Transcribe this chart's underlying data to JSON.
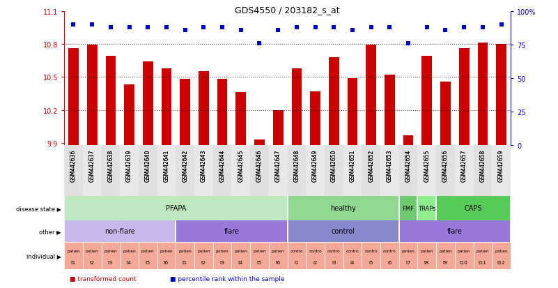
{
  "title": "GDS4550 / 203182_s_at",
  "samples": [
    "GSM442636",
    "GSM442637",
    "GSM442638",
    "GSM442639",
    "GSM442640",
    "GSM442641",
    "GSM442642",
    "GSM442643",
    "GSM442644",
    "GSM442645",
    "GSM442646",
    "GSM442647",
    "GSM442648",
    "GSM442649",
    "GSM442650",
    "GSM442651",
    "GSM442652",
    "GSM442653",
    "GSM442654",
    "GSM442655",
    "GSM442656",
    "GSM442657",
    "GSM442658",
    "GSM442659"
  ],
  "bar_values": [
    10.76,
    10.79,
    10.69,
    10.43,
    10.64,
    10.58,
    10.48,
    10.55,
    10.48,
    10.36,
    9.93,
    10.2,
    10.58,
    10.37,
    10.68,
    10.49,
    10.79,
    10.52,
    9.97,
    10.69,
    10.46,
    10.76,
    10.81,
    10.8
  ],
  "perc_pct": [
    90,
    90,
    88,
    88,
    88,
    88,
    86,
    88,
    88,
    86,
    76,
    86,
    88,
    88,
    88,
    86,
    88,
    88,
    76,
    88,
    86,
    88,
    88,
    90
  ],
  "ylim": [
    9.88,
    11.1
  ],
  "yticks": [
    9.9,
    10.2,
    10.5,
    10.8,
    11.1
  ],
  "ytick_labels": [
    "9.9",
    "10.2",
    "10.5",
    "10.8",
    "11.1"
  ],
  "y2pct": [
    0,
    25,
    50,
    75,
    100
  ],
  "y2tick_labels": [
    "0",
    "25",
    "50",
    "75",
    "100%"
  ],
  "bar_color": "#cc0000",
  "dot_color": "#0000cc",
  "hline_values": [
    10.2,
    10.5,
    10.8
  ],
  "disease_info": [
    [
      0,
      11,
      "PFAPA",
      "#c0e8c0"
    ],
    [
      12,
      17,
      "healthy",
      "#90d890"
    ],
    [
      18,
      18,
      "FMF",
      "#70c870"
    ],
    [
      19,
      19,
      "TRAPs",
      "#90ee90"
    ],
    [
      20,
      23,
      "CAPS",
      "#58cc58"
    ]
  ],
  "other_info": [
    [
      0,
      5,
      "non-flare",
      "#c8b8ec"
    ],
    [
      6,
      11,
      "flare",
      "#9878d8"
    ],
    [
      12,
      17,
      "control",
      "#8888cc"
    ],
    [
      18,
      23,
      "flare",
      "#9878d8"
    ]
  ],
  "individual_labels_top": [
    "patien",
    "patien",
    "patien",
    "patien",
    "patien",
    "patien",
    "patien",
    "patien",
    "patien",
    "patien",
    "patien",
    "patien",
    "contro",
    "contro",
    "contro",
    "contro",
    "contro",
    "contro",
    "patien",
    "patien",
    "patien",
    "patien",
    "patien",
    "patien"
  ],
  "individual_labels_bot": [
    "t1",
    "t2",
    "t3",
    "t4",
    "t5",
    "t6",
    "t1",
    "t2",
    "t3",
    "t4",
    "t5",
    "t6",
    "l1",
    "l2",
    "l3",
    "l4",
    "l5",
    "l6",
    "t7",
    "t8",
    "t9",
    "t10",
    "t11",
    "t12"
  ],
  "ind_color_patient": "#f4a898",
  "ind_color_control": "#f4a898",
  "legend_red": "transformed count",
  "legend_blue": "percentile rank within the sample",
  "chart_bg": "#ffffff",
  "label_row_left": [
    "disease state",
    "other",
    "individual"
  ]
}
